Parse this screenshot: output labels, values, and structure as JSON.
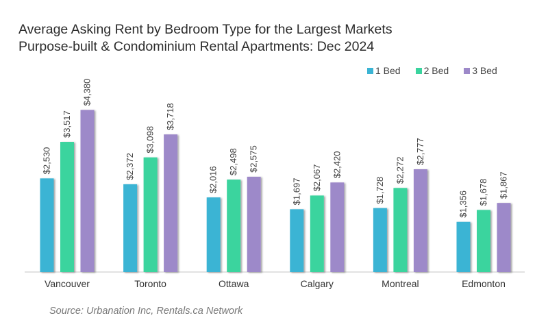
{
  "chart_data": {
    "type": "bar",
    "title": "Average Asking Rent by Bedroom Type for the Largest Markets",
    "subtitle": "Purpose-built & Condominium Rental Apartments: Dec 2024",
    "categories": [
      "Vancouver",
      "Toronto",
      "Ottawa",
      "Calgary",
      "Montreal",
      "Edmonton"
    ],
    "series": [
      {
        "name": "1 Bed",
        "color": "#3bb4d4",
        "values": [
          2530,
          2372,
          2016,
          1697,
          1728,
          1356
        ],
        "labels": [
          "$2,530",
          "$2,372",
          "$2,016",
          "$1,697",
          "$1,728",
          "$1,356"
        ]
      },
      {
        "name": "2 Bed",
        "color": "#3ad49e",
        "values": [
          3517,
          3098,
          2498,
          2067,
          2272,
          1678
        ],
        "labels": [
          "$3,517",
          "$3,098",
          "$2,498",
          "$2,067",
          "$2,272",
          "$1,678"
        ]
      },
      {
        "name": "3 Bed",
        "color": "#9d89c9",
        "values": [
          4380,
          3718,
          2575,
          2420,
          2777,
          1867
        ],
        "labels": [
          "$4,380",
          "$3,718",
          "$2,575",
          "$2,420",
          "$2,777",
          "$1,867"
        ]
      }
    ],
    "xlabel": "",
    "ylabel": "",
    "ylim": [
      0,
      7350
    ],
    "grid": false,
    "legend": "top-right",
    "source": "Source: Urbanation Inc, Rentals.ca Network"
  }
}
